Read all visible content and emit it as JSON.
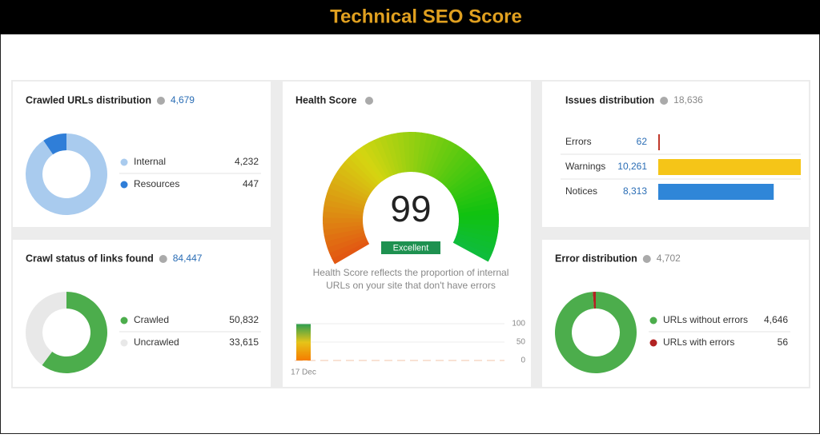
{
  "header": {
    "title": "Technical SEO Score"
  },
  "crawled_urls": {
    "type": "donut",
    "title": "Crawled URLs distribution",
    "total": {
      "value": 4679,
      "label": "4,679"
    },
    "categories": [
      "Internal",
      "Resources"
    ],
    "values": [
      4232,
      447
    ],
    "value_labels": [
      "4,232",
      "447"
    ],
    "colors": [
      "#a9cbee",
      "#2f7ed8"
    ]
  },
  "crawl_status": {
    "type": "donut",
    "title": "Crawl status of links found",
    "total": {
      "value": 84447,
      "label": "84,447"
    },
    "categories": [
      "Crawled",
      "Uncrawled"
    ],
    "values": [
      50832,
      33615
    ],
    "value_labels": [
      "50,832",
      "33,615"
    ],
    "colors": [
      "#4cad4c",
      "#e8e8e8"
    ]
  },
  "health_score": {
    "type": "gauge",
    "title": "Health Score",
    "score": 99,
    "rating": "Excellent",
    "description_lines": [
      "Health Score reflects the proportion of internal",
      "URLs on your site that don't have errors"
    ],
    "history": {
      "type": "bar",
      "categories": [
        "17 Dec"
      ],
      "values": [
        99
      ],
      "ylim": [
        0,
        100
      ],
      "yticks": [
        100,
        50,
        0
      ]
    }
  },
  "issues": {
    "type": "bar",
    "title": "Issues distribution",
    "total": {
      "value": 18636,
      "label": "18,636"
    },
    "categories": [
      "Errors",
      "Warnings",
      "Notices"
    ],
    "values": [
      62,
      10261,
      8313
    ],
    "value_labels": [
      "62",
      "10,261",
      "8,313"
    ],
    "colors": [
      "#c0392b",
      "#f5c518",
      "#2f86d8"
    ]
  },
  "error_distribution": {
    "type": "donut",
    "title": "Error distribution",
    "total": {
      "value": 4702,
      "label": "4,702"
    },
    "categories": [
      "URLs without errors",
      "URLs with errors"
    ],
    "values": [
      4646,
      56
    ],
    "value_labels": [
      "4,646",
      "56"
    ],
    "colors": [
      "#4cad4c",
      "#b22222"
    ]
  }
}
